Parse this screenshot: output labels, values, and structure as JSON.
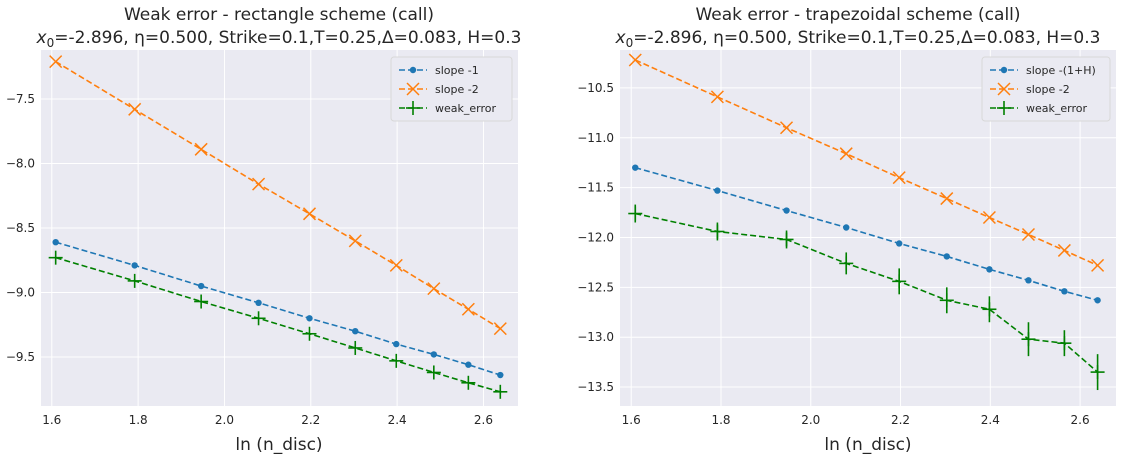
{
  "chart_data": [
    {
      "type": "line",
      "title_line1": "Weak error - rectangle scheme (call)",
      "title_line2": "x0=-2.896, η=0.500, Strike=0.1,T=0.25,Δ=0.083, H=0.3",
      "xlabel": "ln (n_disc)",
      "ylabel": "",
      "xlim": [
        1.575,
        2.68
      ],
      "ylim": [
        -9.88,
        -7.12
      ],
      "xticks": [
        "1.6",
        "1.8",
        "2.0",
        "2.2",
        "2.4",
        "2.6"
      ],
      "yticks": [
        "-7.5",
        "-8.0",
        "-8.5",
        "-9.0",
        "-9.5"
      ],
      "grid": true,
      "legend_position": "top-right",
      "x": [
        1.609,
        1.792,
        1.946,
        2.079,
        2.197,
        2.303,
        2.398,
        2.485,
        2.565,
        2.639
      ],
      "series": [
        {
          "name": "slope -1",
          "color": "#1f77b4",
          "marker": "circle",
          "values": [
            -8.61,
            -8.79,
            -8.95,
            -9.08,
            -9.2,
            -9.3,
            -9.4,
            -9.48,
            -9.56,
            -9.64
          ]
        },
        {
          "name": "slope -2",
          "color": "#ff7f0e",
          "marker": "x",
          "values": [
            -7.21,
            -7.58,
            -7.89,
            -8.16,
            -8.39,
            -8.6,
            -8.79,
            -8.97,
            -9.13,
            -9.28
          ]
        },
        {
          "name": "weak_error",
          "color": "#008000",
          "marker": "plus",
          "values": [
            -8.73,
            -8.91,
            -9.07,
            -9.2,
            -9.32,
            -9.43,
            -9.53,
            -9.62,
            -9.7,
            -9.77
          ],
          "errors": [
            0.005,
            0.005,
            0.005,
            0.005,
            0.005,
            0.005,
            0.005,
            0.005,
            0.008,
            0.01
          ]
        }
      ]
    },
    {
      "type": "line",
      "title_line1": "Weak error - trapezoidal scheme (call)",
      "title_line2": "x0=-2.896, η=0.500, Strike=0.1,T=0.25,Δ=0.083, H=0.3",
      "xlabel": "ln (n_disc)",
      "ylabel": "",
      "xlim": [
        1.575,
        2.68
      ],
      "ylim": [
        -13.69,
        -10.12
      ],
      "xticks": [
        "1.6",
        "1.8",
        "2.0",
        "2.2",
        "2.4",
        "2.6"
      ],
      "yticks": [
        "-10.5",
        "-11.0",
        "-11.5",
        "-12.0",
        "-12.5",
        "-13.0",
        "-13.5"
      ],
      "grid": true,
      "legend_position": "top-right",
      "x": [
        1.609,
        1.792,
        1.946,
        2.079,
        2.197,
        2.303,
        2.398,
        2.485,
        2.565,
        2.639
      ],
      "series": [
        {
          "name": "slope -(1+H)",
          "color": "#1f77b4",
          "marker": "circle",
          "values": [
            -11.3,
            -11.53,
            -11.73,
            -11.9,
            -12.06,
            -12.19,
            -12.32,
            -12.43,
            -12.54,
            -12.63
          ]
        },
        {
          "name": "slope -2",
          "color": "#ff7f0e",
          "marker": "x",
          "values": [
            -10.22,
            -10.59,
            -10.9,
            -11.16,
            -11.4,
            -11.61,
            -11.8,
            -11.97,
            -12.13,
            -12.28
          ]
        },
        {
          "name": "weak_error",
          "color": "#008000",
          "marker": "plus",
          "values": [
            -11.76,
            -11.94,
            -12.02,
            -12.26,
            -12.44,
            -12.63,
            -12.72,
            -13.02,
            -13.06,
            -13.35
          ],
          "errors": [
            0.09,
            0.09,
            0.09,
            0.11,
            0.13,
            0.13,
            0.13,
            0.17,
            0.13,
            0.18
          ]
        }
      ]
    }
  ]
}
